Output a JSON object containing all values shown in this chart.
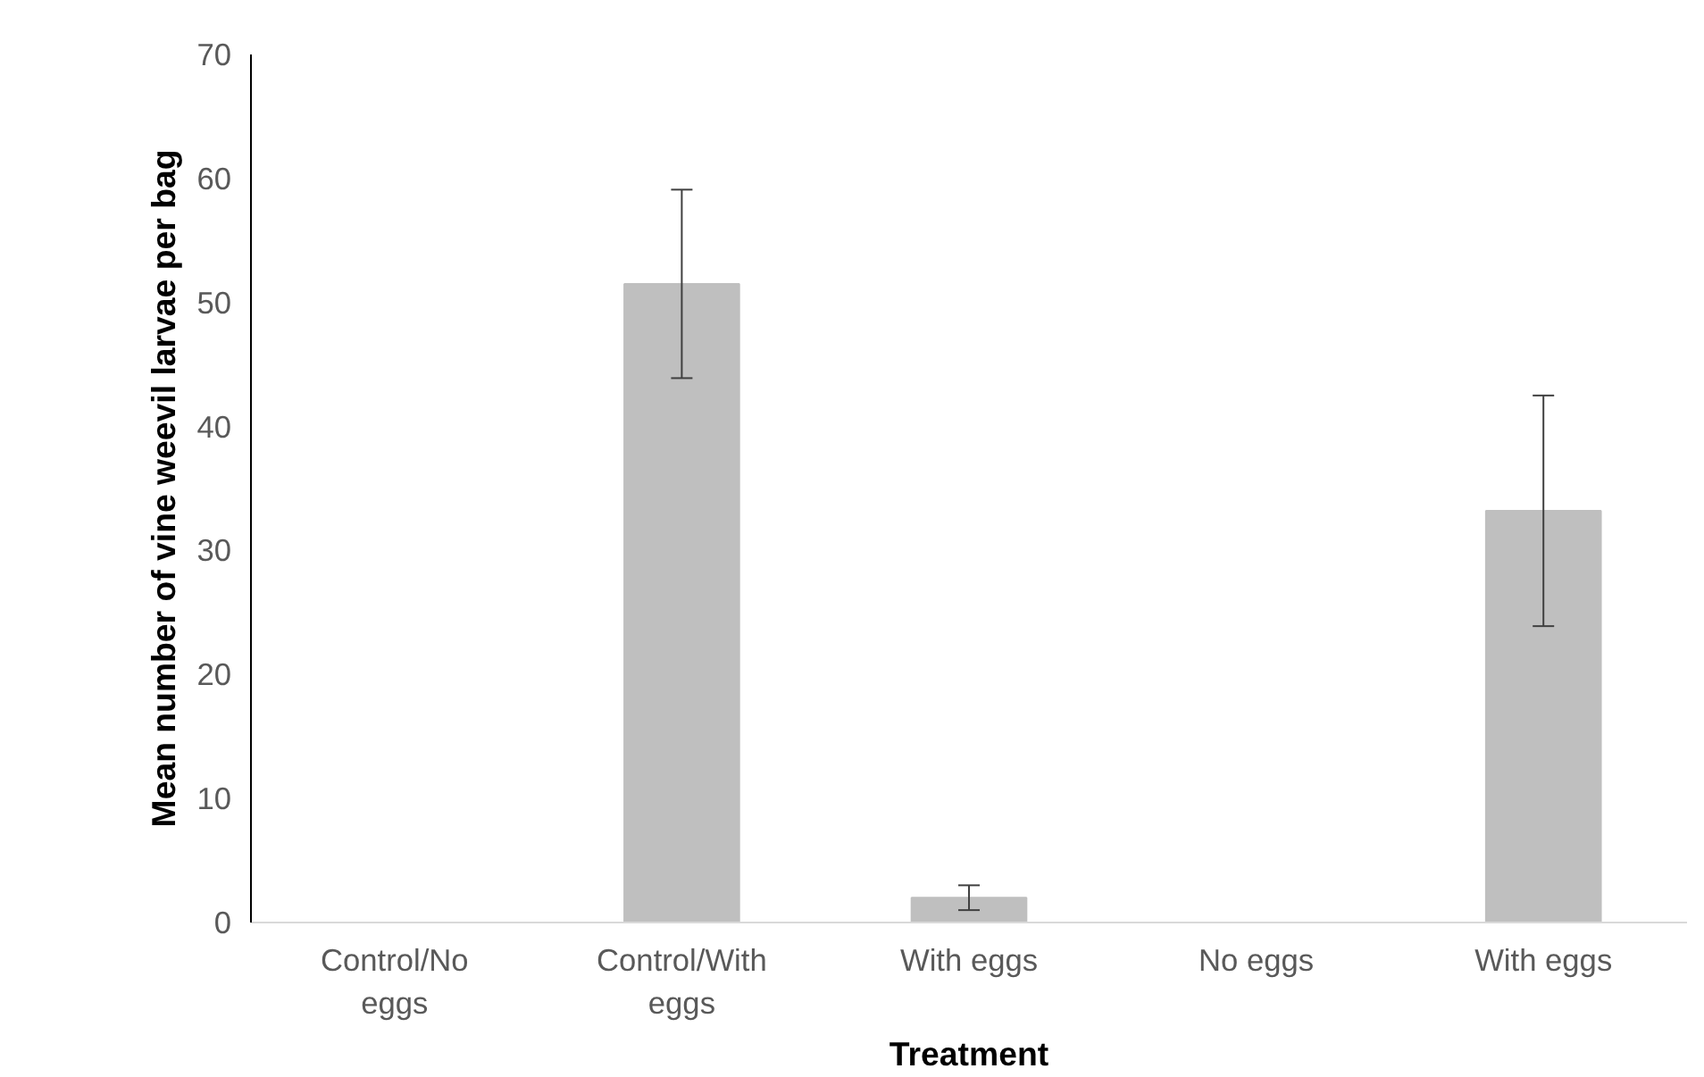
{
  "chart_data": {
    "type": "bar",
    "xlabel": "Treatment",
    "ylabel": "Mean number of vine weevil larvae per bag",
    "categories": [
      "Control/No eggs",
      "Control/With eggs",
      "With eggs",
      "No eggs",
      "With eggs"
    ],
    "values": [
      0,
      51.5,
      2,
      0,
      33.2
    ],
    "errors": [
      null,
      7.6,
      1,
      null,
      9.3
    ],
    "color": "#bfbfbf",
    "ylim": [
      0,
      70
    ],
    "yticks": [
      0,
      10,
      20,
      30,
      40,
      50,
      60,
      70
    ],
    "grid": false
  }
}
